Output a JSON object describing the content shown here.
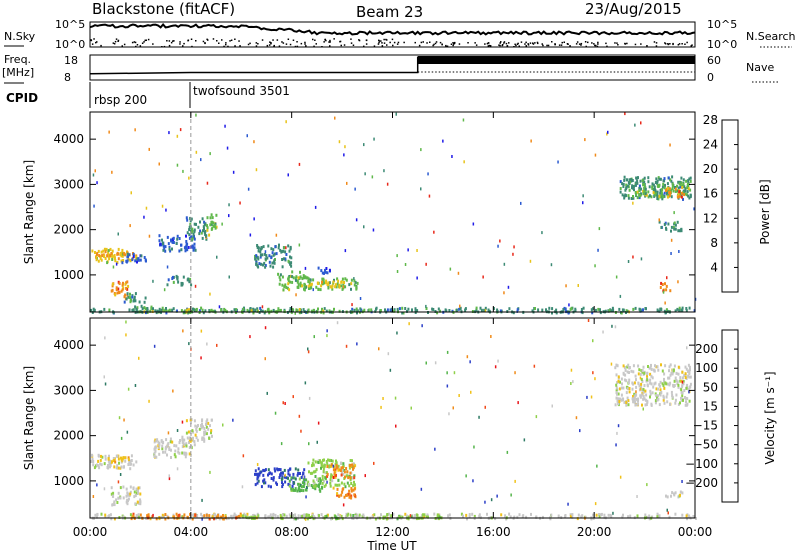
{
  "chart_data": {
    "type": "heatmap",
    "header": {
      "radar": "Blackstone (fitACF)",
      "beam": "Beam 23",
      "date": "23/Aug/2015"
    },
    "xlabel": "Time UT",
    "x_ticks": [
      "00:00",
      "04:00",
      "08:00",
      "12:00",
      "16:00",
      "20:00",
      "00:00"
    ],
    "xlim_hours": [
      0,
      24
    ],
    "noise_panel": {
      "left_label": "N.Sky",
      "right_label": "N.Search",
      "left_ticks": [
        "10^5",
        "10^0"
      ],
      "right_ticks": [
        "10^5",
        "10^0"
      ]
    },
    "freq_panel": {
      "left_label": "Freq.",
      "left_unit": "[MHz]",
      "right_label": "Nave",
      "left_ticks": [
        "18",
        "8"
      ],
      "right_ticks": [
        "60",
        "0"
      ],
      "freq_mhz": [
        [
          0,
          10.5
        ],
        [
          4,
          11
        ],
        [
          13,
          11
        ],
        [
          13,
          17
        ],
        [
          24,
          17
        ]
      ]
    },
    "cpid_panel": {
      "label": "CPID",
      "programs": [
        {
          "name": "rbsp 200",
          "start_h": 0
        },
        {
          "name": "twofsound 3501",
          "start_h": 4
        }
      ]
    },
    "power_panel": {
      "ylabel": "Slant Range [km]",
      "ylim_km": [
        180,
        4600
      ],
      "y_ticks": [
        "1000",
        "2000",
        "3000",
        "4000"
      ],
      "cbar_label": "Power [dB]",
      "cbar_ticks": [
        "4",
        "8",
        "12",
        "16",
        "20",
        "24",
        "28"
      ],
      "cbar_colors": [
        "#1f1ae8",
        "#2b5ad0",
        "#3c8a74",
        "#5fb84a",
        "#e8c31a",
        "#f08a1a",
        "#e8281a"
      ]
    },
    "velocity_panel": {
      "ylabel": "Slant Range [km]",
      "ylim_km": [
        180,
        4600
      ],
      "y_ticks": [
        "1000",
        "2000",
        "3000",
        "4000"
      ],
      "cbar_label": "Velocity [m s⁻¹]",
      "cbar_ticks": [
        "200",
        "100",
        "50",
        "15",
        "−15",
        "−50",
        "−100",
        "−200"
      ],
      "cbar_colors": [
        "#2c3fc8",
        "#2e7a64",
        "#54b44a",
        "#8fd04a",
        "#c8c8c8",
        "#f0c21a",
        "#f08c1a",
        "#f04a1a",
        "#e8141a"
      ]
    },
    "power_regions": [
      {
        "t": [
          0,
          1.8
        ],
        "r": [
          1300,
          1600
        ],
        "c": 4
      },
      {
        "t": [
          0.2,
          1.6
        ],
        "r": [
          1450,
          1550
        ],
        "c": 5
      },
      {
        "t": [
          1.2,
          2.2
        ],
        "r": [
          1300,
          1500
        ],
        "c": 1
      },
      {
        "t": [
          0.8,
          1.5
        ],
        "r": [
          500,
          900
        ],
        "c": 5
      },
      {
        "t": [
          1.3,
          2.2
        ],
        "r": [
          420,
          620
        ],
        "c": 2
      },
      {
        "t": [
          1.5,
          3.0
        ],
        "r": [
          200,
          350
        ],
        "c": 3
      },
      {
        "t": [
          2.7,
          4.2
        ],
        "r": [
          1550,
          1900
        ],
        "c": 1
      },
      {
        "t": [
          3.8,
          4.6
        ],
        "r": [
          1800,
          2300
        ],
        "c": 2
      },
      {
        "t": [
          4.6,
          5.0
        ],
        "r": [
          1900,
          2400
        ],
        "c": 3
      },
      {
        "t": [
          3.0,
          4.0
        ],
        "r": [
          800,
          1000
        ],
        "c": 2
      },
      {
        "t": [
          6.5,
          8.0
        ],
        "r": [
          1200,
          1700
        ],
        "c": 2
      },
      {
        "t": [
          7.4,
          8.6
        ],
        "r": [
          700,
          1100
        ],
        "c": 3
      },
      {
        "t": [
          8.4,
          10.6
        ],
        "r": [
          700,
          950
        ],
        "c": 3
      },
      {
        "t": [
          8.7,
          10.2
        ],
        "r": [
          750,
          900
        ],
        "c": 4
      },
      {
        "t": [
          9.0,
          9.6
        ],
        "r": [
          1050,
          1200
        ],
        "c": 1
      },
      {
        "t": [
          0,
          24
        ],
        "r": [
          190,
          300
        ],
        "c": 2
      },
      {
        "t": [
          3.5,
          11
        ],
        "r": [
          200,
          280
        ],
        "c": 3
      },
      {
        "t": [
          21.0,
          23.8
        ],
        "r": [
          2700,
          3200
        ],
        "c": 2
      },
      {
        "t": [
          21.5,
          23.8
        ],
        "r": [
          2750,
          3050
        ],
        "c": 3
      },
      {
        "t": [
          22.8,
          23.6
        ],
        "r": [
          2750,
          2950
        ],
        "c": 5
      },
      {
        "t": [
          22.6,
          23.0
        ],
        "r": [
          650,
          850
        ],
        "c": 5
      },
      {
        "t": [
          22.5,
          23.5
        ],
        "r": [
          2000,
          2200
        ],
        "c": 2
      }
    ],
    "velocity_regions": [
      {
        "t": [
          0,
          1.8
        ],
        "r": [
          1300,
          1600
        ],
        "c": 4
      },
      {
        "t": [
          0.2,
          1.6
        ],
        "r": [
          1450,
          1550
        ],
        "c": 5
      },
      {
        "t": [
          0.8,
          2.0
        ],
        "r": [
          500,
          900
        ],
        "c": 4
      },
      {
        "t": [
          2.5,
          4.2
        ],
        "r": [
          1550,
          2000
        ],
        "c": 4
      },
      {
        "t": [
          3.8,
          4.8
        ],
        "r": [
          1900,
          2400
        ],
        "c": 4
      },
      {
        "t": [
          6.5,
          8.5
        ],
        "r": [
          900,
          1300
        ],
        "c": 0
      },
      {
        "t": [
          7.8,
          9.2
        ],
        "r": [
          800,
          1100
        ],
        "c": 2
      },
      {
        "t": [
          8.6,
          10.5
        ],
        "r": [
          900,
          1500
        ],
        "c": 3
      },
      {
        "t": [
          9.3,
          10.5
        ],
        "r": [
          1100,
          1400
        ],
        "c": 6
      },
      {
        "t": [
          9.6,
          10.6
        ],
        "r": [
          650,
          900
        ],
        "c": 6
      },
      {
        "t": [
          0,
          24
        ],
        "r": [
          190,
          300
        ],
        "c": 4
      },
      {
        "t": [
          1.5,
          6.0
        ],
        "r": [
          190,
          300
        ],
        "c": 6
      },
      {
        "t": [
          6.0,
          14.0
        ],
        "r": [
          190,
          290
        ],
        "c": 3
      },
      {
        "t": [
          20.8,
          23.8
        ],
        "r": [
          2700,
          3600
        ],
        "c": 4
      },
      {
        "t": [
          22.8,
          23.5
        ],
        "r": [
          650,
          800
        ],
        "c": 4
      }
    ]
  }
}
